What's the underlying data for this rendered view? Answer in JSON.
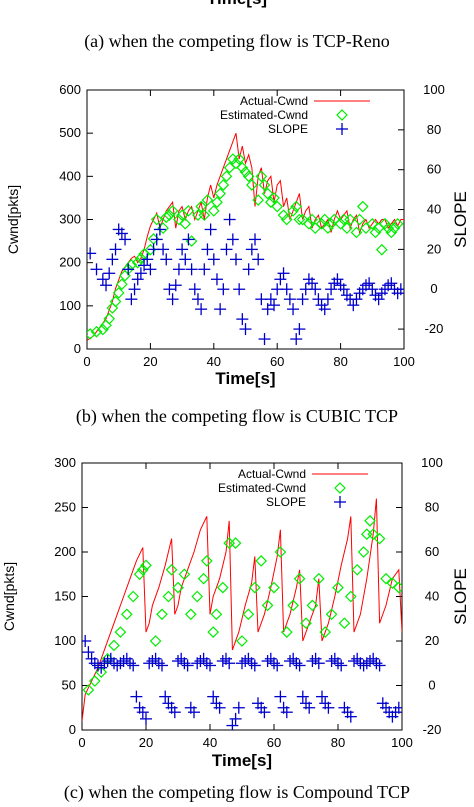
{
  "captions": {
    "a": "(a) when the competing flow is TCP-Reno",
    "b": "(b) when the competing flow is CUBIC TCP",
    "c": "(c) when the competing flow is Compound TCP"
  },
  "top_axis_label": "Time[s]",
  "colors": {
    "actual": "#ff0000",
    "estimated": "#00ee00",
    "slope": "#0000cc",
    "axes": "#000000"
  },
  "chart_data": [
    {
      "type": "line",
      "panel": "b",
      "xlabel": "Time[s]",
      "ylabel": "Cwnd[pkts]",
      "y2label": "SLOPE",
      "xlim": [
        0,
        100
      ],
      "ylim": [
        0,
        600
      ],
      "y2lim": [
        -30,
        100
      ],
      "xticks": [
        "0",
        "20",
        "40",
        "60",
        "80",
        "100"
      ],
      "yticks": [
        "0",
        "100",
        "200",
        "300",
        "400",
        "500",
        "600"
      ],
      "y2ticks": [
        "-20",
        "0",
        "20",
        "40",
        "60",
        "80",
        "100"
      ],
      "legend_position": "top-right",
      "series": [
        {
          "name": "Actual-Cwnd",
          "style": "line",
          "x": [
            0,
            2,
            3,
            4,
            5,
            6,
            7,
            8,
            9,
            10,
            11,
            12,
            13,
            14,
            15,
            16,
            17,
            18,
            19,
            20,
            21,
            22,
            23,
            24,
            25,
            26,
            27,
            28,
            29,
            30,
            31,
            32,
            33,
            34,
            35,
            36,
            37,
            38,
            39,
            40,
            41,
            42,
            43,
            44,
            45,
            46,
            47,
            48,
            49,
            50,
            51,
            52,
            53,
            54,
            55,
            56,
            57,
            58,
            59,
            60,
            61,
            62,
            63,
            64,
            65,
            66,
            67,
            68,
            69,
            70,
            71,
            72,
            73,
            74,
            75,
            76,
            77,
            78,
            79,
            80,
            81,
            82,
            83,
            84,
            85,
            86,
            87,
            88,
            89,
            90,
            91,
            92,
            93,
            94,
            95,
            96,
            97,
            98,
            99,
            100
          ],
          "values": [
            20,
            30,
            40,
            50,
            60,
            70,
            90,
            110,
            140,
            160,
            180,
            190,
            200,
            210,
            215,
            200,
            210,
            230,
            260,
            285,
            300,
            315,
            280,
            300,
            320,
            330,
            340,
            280,
            320,
            330,
            300,
            320,
            330,
            300,
            320,
            340,
            300,
            350,
            380,
            350,
            380,
            400,
            420,
            440,
            460,
            480,
            500,
            440,
            470,
            430,
            450,
            420,
            330,
            400,
            420,
            360,
            390,
            400,
            340,
            380,
            390,
            330,
            350,
            300,
            320,
            340,
            360,
            300,
            320,
            330,
            280,
            300,
            310,
            280,
            290,
            300,
            270,
            300,
            320,
            300,
            310,
            320,
            280,
            300,
            310,
            270,
            290,
            300,
            280,
            290,
            300,
            290,
            300,
            300,
            280,
            290,
            300,
            285,
            300,
            300
          ]
        },
        {
          "name": "Estimated-Cwnd",
          "style": "diamond",
          "x": [
            1,
            3,
            5,
            6,
            7,
            8,
            9,
            10,
            11,
            12,
            13,
            14,
            16,
            17,
            18,
            20,
            21,
            22,
            24,
            25,
            26,
            27,
            29,
            30,
            31,
            32,
            33,
            35,
            36,
            37,
            38,
            40,
            41,
            42,
            43,
            44,
            45,
            46,
            47,
            48,
            49,
            50,
            51,
            52,
            54,
            55,
            56,
            57,
            58,
            59,
            60,
            62,
            63,
            65,
            66,
            67,
            68,
            70,
            71,
            72,
            74,
            75,
            76,
            77,
            78,
            80,
            81,
            82,
            83,
            85,
            86,
            87,
            88,
            90,
            91,
            92,
            93,
            94,
            95,
            96,
            97,
            98
          ],
          "values": [
            35,
            40,
            45,
            55,
            70,
            95,
            110,
            130,
            150,
            170,
            185,
            195,
            200,
            210,
            220,
            230,
            255,
            300,
            280,
            305,
            310,
            320,
            300,
            310,
            290,
            320,
            250,
            310,
            330,
            310,
            345,
            320,
            340,
            360,
            380,
            400,
            420,
            440,
            430,
            440,
            420,
            410,
            400,
            380,
            345,
            400,
            380,
            360,
            340,
            350,
            330,
            310,
            300,
            320,
            330,
            300,
            300,
            290,
            300,
            280,
            290,
            300,
            280,
            290,
            300,
            290,
            300,
            280,
            300,
            270,
            300,
            330,
            280,
            290,
            270,
            280,
            230,
            290,
            280,
            270,
            280,
            290
          ]
        },
        {
          "name": "SLOPE",
          "style": "plus",
          "y_axis": "right",
          "x": [
            1,
            3,
            5,
            6,
            7,
            8,
            9,
            10,
            11,
            12,
            13,
            14,
            15,
            16,
            17,
            18,
            19,
            20,
            21,
            22,
            23,
            24,
            25,
            26,
            27,
            28,
            29,
            30,
            31,
            32,
            33,
            34,
            35,
            36,
            37,
            38,
            39,
            40,
            41,
            42,
            43,
            44,
            45,
            46,
            47,
            48,
            49,
            50,
            51,
            52,
            53,
            54,
            55,
            56,
            57,
            58,
            59,
            60,
            61,
            62,
            63,
            64,
            65,
            66,
            67,
            68,
            69,
            70,
            71,
            72,
            73,
            74,
            75,
            76,
            77,
            78,
            79,
            80,
            81,
            82,
            83,
            84,
            85,
            86,
            87,
            88,
            89,
            90,
            91,
            92,
            93,
            94,
            95,
            96,
            97,
            98,
            99
          ],
          "values": [
            18,
            10,
            5,
            2,
            8,
            15,
            20,
            30,
            28,
            25,
            10,
            -5,
            0,
            5,
            8,
            12,
            15,
            10,
            20,
            25,
            30,
            20,
            15,
            0,
            -5,
            2,
            10,
            20,
            15,
            25,
            10,
            0,
            -5,
            -10,
            10,
            20,
            30,
            15,
            5,
            -10,
            0,
            20,
            35,
            25,
            15,
            0,
            -15,
            -20,
            10,
            20,
            25,
            15,
            -5,
            -25,
            -10,
            -5,
            -8,
            0,
            5,
            8,
            0,
            -5,
            -10,
            -25,
            -20,
            -5,
            0,
            5,
            3,
            0,
            -5,
            -8,
            -10,
            -5,
            0,
            3,
            5,
            2,
            0,
            -3,
            -5,
            -8,
            -5,
            -2,
            0,
            2,
            3,
            0,
            -3,
            -5,
            -2,
            0,
            2,
            3,
            0,
            -2,
            0
          ]
        }
      ]
    },
    {
      "type": "line",
      "panel": "c",
      "xlabel": "Time[s]",
      "ylabel": "Cwnd[pkts]",
      "y2label": "SLOPE",
      "xlim": [
        0,
        100
      ],
      "ylim": [
        0,
        300
      ],
      "y2lim": [
        -20,
        100
      ],
      "xticks": [
        "0",
        "20",
        "40",
        "60",
        "80",
        "100"
      ],
      "yticks": [
        "0",
        "50",
        "100",
        "150",
        "200",
        "250",
        "300"
      ],
      "y2ticks": [
        "-20",
        "0",
        "20",
        "40",
        "60",
        "80",
        "100"
      ],
      "legend_position": "top-right",
      "series": [
        {
          "name": "Actual-Cwnd",
          "style": "line",
          "x": [
            0,
            1,
            3,
            5,
            7,
            9,
            11,
            13,
            15,
            17,
            19,
            20,
            21,
            22,
            24,
            26,
            28,
            29,
            30,
            31,
            33,
            35,
            37,
            39,
            40,
            41,
            43,
            45,
            46,
            47,
            49,
            51,
            53,
            54,
            55,
            57,
            59,
            61,
            62,
            63,
            65,
            67,
            68,
            69,
            71,
            73,
            74,
            75,
            77,
            79,
            81,
            83,
            84,
            85,
            87,
            89,
            91,
            92,
            93,
            95,
            97,
            99,
            100
          ],
          "values": [
            10,
            40,
            55,
            70,
            90,
            110,
            130,
            150,
            170,
            190,
            205,
            110,
            120,
            140,
            160,
            185,
            215,
            130,
            140,
            160,
            180,
            200,
            225,
            240,
            130,
            150,
            170,
            200,
            235,
            90,
            110,
            140,
            165,
            195,
            110,
            130,
            160,
            195,
            225,
            110,
            130,
            160,
            180,
            100,
            120,
            140,
            170,
            100,
            120,
            150,
            185,
            215,
            240,
            110,
            130,
            170,
            220,
            260,
            120,
            140,
            170,
            180,
            110
          ]
        },
        {
          "name": "Estimated-Cwnd",
          "style": "diamond",
          "x": [
            2,
            4,
            6,
            8,
            10,
            12,
            14,
            16,
            18,
            19,
            20,
            23,
            25,
            27,
            28,
            30,
            32,
            34,
            36,
            38,
            39,
            41,
            42,
            44,
            46,
            48,
            50,
            52,
            54,
            56,
            58,
            60,
            62,
            64,
            66,
            68,
            70,
            72,
            74,
            76,
            78,
            80,
            82,
            84,
            86,
            88,
            89,
            90,
            91,
            93,
            95,
            97,
            99
          ],
          "values": [
            45,
            55,
            65,
            80,
            95,
            110,
            130,
            150,
            175,
            180,
            185,
            100,
            130,
            150,
            180,
            160,
            175,
            130,
            150,
            170,
            190,
            110,
            130,
            160,
            210,
            210,
            100,
            130,
            160,
            190,
            140,
            160,
            200,
            110,
            140,
            170,
            120,
            140,
            170,
            110,
            130,
            160,
            120,
            150,
            180,
            200,
            220,
            235,
            220,
            215,
            170,
            165,
            160
          ]
        },
        {
          "name": "SLOPE",
          "style": "plus",
          "y_axis": "right",
          "x": [
            1,
            2,
            3,
            4,
            5,
            6,
            7,
            8,
            9,
            10,
            11,
            12,
            13,
            14,
            15,
            16,
            17,
            18,
            19,
            20,
            21,
            22,
            23,
            24,
            25,
            26,
            27,
            28,
            29,
            30,
            31,
            32,
            33,
            34,
            35,
            36,
            37,
            38,
            39,
            40,
            41,
            42,
            43,
            44,
            45,
            46,
            47,
            48,
            49,
            50,
            51,
            52,
            53,
            54,
            55,
            56,
            57,
            58,
            59,
            60,
            61,
            62,
            63,
            64,
            65,
            66,
            67,
            68,
            69,
            70,
            71,
            72,
            73,
            74,
            75,
            76,
            77,
            78,
            79,
            80,
            81,
            82,
            83,
            84,
            85,
            86,
            87,
            88,
            89,
            90,
            91,
            92,
            93,
            94,
            95,
            96,
            97,
            98,
            99
          ],
          "values": [
            20,
            15,
            12,
            10,
            9,
            8,
            10,
            11,
            12,
            10,
            9,
            10,
            11,
            12,
            10,
            9,
            -5,
            -10,
            -12,
            -15,
            10,
            11,
            12,
            10,
            9,
            -5,
            -8,
            -10,
            -12,
            11,
            12,
            10,
            9,
            -10,
            -12,
            10,
            11,
            12,
            10,
            9,
            -5,
            -8,
            -10,
            11,
            12,
            10,
            -18,
            -15,
            -10,
            10,
            11,
            12,
            10,
            9,
            -8,
            -10,
            -12,
            11,
            12,
            10,
            9,
            -5,
            -10,
            -12,
            11,
            12,
            10,
            9,
            -5,
            -8,
            -10,
            11,
            12,
            10,
            -5,
            -8,
            -10,
            11,
            12,
            10,
            9,
            -10,
            -12,
            -14,
            11,
            12,
            10,
            9,
            10,
            11,
            12,
            10,
            9,
            -8,
            -10,
            -12,
            -14,
            -12,
            -10
          ]
        }
      ]
    }
  ]
}
